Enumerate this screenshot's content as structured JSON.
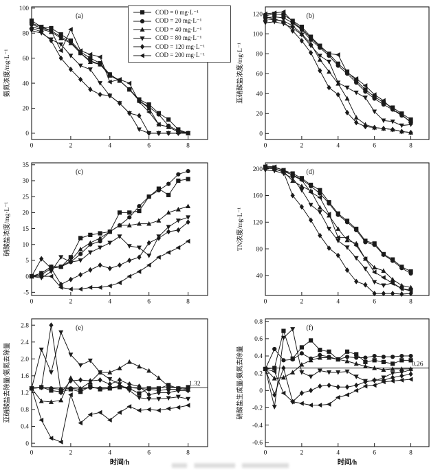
{
  "figure": {
    "background": "#ffffff",
    "line_color": "#1b1b1b",
    "x_axis_label": "时间/h",
    "x_tick_values": [
      0,
      2,
      4,
      6,
      8
    ],
    "x_ticks": [
      "0",
      "2",
      "4",
      "6",
      "8"
    ],
    "x_values": [
      0,
      0.5,
      1,
      1.5,
      2,
      2.5,
      3,
      3.5,
      4,
      4.5,
      5,
      5.5,
      6,
      6.5,
      7,
      7.5,
      8
    ]
  },
  "legend": {
    "entries": [
      {
        "label": "COD = 0 mg·L⁻¹",
        "marker": "square"
      },
      {
        "label": "COD = 20 mg·L⁻¹",
        "marker": "circle"
      },
      {
        "label": "COD = 40 mg·L⁻¹",
        "marker": "triangle-up"
      },
      {
        "label": "COD = 80 mg·L⁻¹",
        "marker": "triangle-down"
      },
      {
        "label": "COD = 120 mg·L⁻¹",
        "marker": "diamond"
      },
      {
        "label": "COD = 200 mg·L⁻¹",
        "marker": "triangle-left"
      }
    ]
  },
  "chart_data": [
    {
      "id": "a",
      "type": "line",
      "panel_label": "(a)",
      "ylabel": "氨氮浓度/mg·L⁻¹",
      "xlabel": "",
      "xlim": [
        0,
        9
      ],
      "ylim": [
        -5,
        101
      ],
      "ytick_values": [
        0,
        20,
        40,
        60,
        80,
        100
      ],
      "ytick_labels": [
        "0",
        "20",
        "40",
        "60",
        "80",
        "100"
      ],
      "series": [
        {
          "name": "COD = 0 mg·L⁻¹",
          "marker": "square",
          "values": [
            90,
            85,
            84,
            79,
            74,
            65,
            60,
            56,
            47,
            42,
            35,
            27,
            23,
            16,
            11,
            3,
            0
          ]
        },
        {
          "name": "COD = 20 mg·L⁻¹",
          "marker": "circle",
          "values": [
            87,
            84,
            82,
            77,
            73,
            64,
            58,
            55,
            47,
            42,
            35,
            26,
            21,
            15,
            6,
            2,
            0
          ]
        },
        {
          "name": "COD = 40 mg·L⁻¹",
          "marker": "triangle-up",
          "values": [
            85,
            83,
            81,
            76,
            72,
            64,
            57,
            55,
            46,
            42,
            35,
            26,
            20,
            7,
            5,
            1,
            0
          ]
        },
        {
          "name": "COD = 80 mg·L⁻¹",
          "marker": "triangle-down",
          "values": [
            82,
            80,
            75,
            71,
            62,
            54,
            51,
            40,
            30,
            24,
            16,
            3,
            0,
            0,
            0,
            0,
            0
          ]
        },
        {
          "name": "COD = 120 mg·L⁻¹",
          "marker": "diamond",
          "values": [
            84,
            81,
            74,
            60,
            51,
            43,
            35,
            31,
            30,
            24,
            16,
            14,
            0,
            0,
            0,
            0,
            0
          ]
        },
        {
          "name": "COD = 200 mg·L⁻¹",
          "marker": "triangle-left",
          "values": [
            88,
            85,
            82,
            66,
            83,
            66,
            63,
            61,
            41,
            43,
            40,
            25,
            17,
            7,
            5,
            1,
            0
          ]
        }
      ]
    },
    {
      "id": "b",
      "type": "line",
      "panel_label": "(b)",
      "ylabel": "亚硝酸盐浓度/mg·L⁻¹",
      "xlabel": "",
      "xlim": [
        0,
        9
      ],
      "ylim": [
        -6,
        127
      ],
      "ytick_values": [
        0,
        20,
        40,
        60,
        80,
        100,
        120
      ],
      "ytick_labels": [
        "0",
        "20",
        "40",
        "60",
        "80",
        "100",
        "120"
      ],
      "series": [
        {
          "name": "COD = 0 mg·L⁻¹",
          "marker": "square",
          "values": [
            118,
            120,
            119,
            113,
            107,
            97,
            88,
            80,
            70,
            62,
            53,
            44,
            37,
            31,
            26,
            20,
            14
          ]
        },
        {
          "name": "COD = 20 mg·L⁻¹",
          "marker": "circle",
          "values": [
            116,
            117,
            116,
            111,
            104,
            94,
            86,
            78,
            68,
            60,
            51,
            42,
            35,
            29,
            24,
            18,
            12
          ]
        },
        {
          "name": "COD = 40 mg·L⁻¹",
          "marker": "triangle-up",
          "values": [
            115,
            114,
            113,
            108,
            100,
            90,
            74,
            62,
            50,
            35,
            16,
            9,
            6,
            5,
            4,
            2,
            1
          ]
        },
        {
          "name": "COD = 80 mg·L⁻¹",
          "marker": "triangle-down",
          "values": [
            111,
            112,
            110,
            106,
            99,
            88,
            78,
            72,
            51,
            46,
            41,
            36,
            22,
            13,
            12,
            8,
            9
          ]
        },
        {
          "name": "COD = 120 mg·L⁻¹",
          "marker": "diamond",
          "values": [
            117,
            115,
            112,
            103,
            93,
            81,
            63,
            46,
            39,
            21,
            11,
            7,
            6,
            5,
            4,
            2,
            1
          ]
        },
        {
          "name": "COD = 200 mg·L⁻¹",
          "marker": "triangle-left",
          "values": [
            120,
            121,
            122,
            112,
            105,
            96,
            87,
            80,
            79,
            61,
            55,
            48,
            39,
            33,
            24,
            19,
            11
          ]
        }
      ]
    },
    {
      "id": "c",
      "type": "line",
      "panel_label": "(c)",
      "ylabel": "硝酸盐浓度/mg·L⁻¹",
      "xlabel": "",
      "xlim": [
        0,
        9
      ],
      "ylim": [
        -6,
        35.6
      ],
      "ytick_values": [
        -5,
        0,
        5,
        10,
        15,
        20,
        25,
        30,
        35
      ],
      "ytick_labels": [
        "-5",
        "0",
        "5",
        "10",
        "15",
        "20",
        "25",
        "30",
        "35"
      ],
      "series": [
        {
          "name": "COD = 0 mg·L⁻¹",
          "marker": "square",
          "values": [
            0,
            1,
            3,
            3,
            6,
            12,
            13,
            13.5,
            14,
            20,
            20,
            20.5,
            25,
            27.5,
            25.5,
            30,
            30.5
          ]
        },
        {
          "name": "COD = 20 mg·L⁻¹",
          "marker": "circle",
          "values": [
            0,
            0.5,
            2.5,
            3,
            4.5,
            7,
            10,
            11,
            14,
            16,
            18.5,
            22,
            25,
            27,
            29,
            32,
            33
          ]
        },
        {
          "name": "COD = 40 mg·L⁻¹",
          "marker": "triangle-up",
          "values": [
            0,
            1,
            3,
            3,
            5,
            8.5,
            10.5,
            12,
            14,
            16,
            16,
            16.5,
            16.5,
            17.5,
            20,
            21,
            22
          ]
        },
        {
          "name": "COD = 80 mg·L⁻¹",
          "marker": "triangle-down",
          "values": [
            0,
            -0.5,
            1.5,
            6,
            4.5,
            5,
            7.5,
            9,
            10.5,
            12.5,
            9.5,
            9,
            6.5,
            12.5,
            15.5,
            17.5,
            18.5
          ]
        },
        {
          "name": "COD = 120 mg·L⁻¹",
          "marker": "diamond",
          "values": [
            0,
            5.5,
            2.5,
            -2.5,
            -1,
            0.5,
            2,
            3.5,
            2.5,
            3.5,
            5,
            6,
            10.5,
            12,
            14,
            14.5,
            17
          ]
        },
        {
          "name": "COD = 200 mg·L⁻¹",
          "marker": "triangle-left",
          "values": [
            0,
            0,
            0,
            -3.5,
            -4,
            -4,
            -3.5,
            -3.5,
            -3,
            -2,
            0,
            1.5,
            3.5,
            6,
            7.5,
            9,
            11
          ]
        }
      ]
    },
    {
      "id": "d",
      "type": "line",
      "panel_label": "(d)",
      "ylabel": "TN浓度/mg·L⁻¹",
      "xlabel": "",
      "xlim": [
        0,
        9
      ],
      "ylim": [
        10,
        209
      ],
      "ytick_values": [
        40,
        80,
        120,
        160,
        200
      ],
      "ytick_labels": [
        "40",
        "80",
        "120",
        "160",
        "200"
      ],
      "series": [
        {
          "name": "COD = 0 mg·L⁻¹",
          "marker": "square",
          "values": [
            203,
            202,
            198,
            193,
            186,
            176,
            168,
            150,
            133,
            122,
            110,
            92,
            88,
            72,
            64,
            53,
            46
          ]
        },
        {
          "name": "COD = 20 mg·L⁻¹",
          "marker": "circle",
          "values": [
            201,
            200,
            196,
            191,
            184,
            174,
            163,
            148,
            131,
            120,
            108,
            90,
            86,
            71,
            62,
            51,
            43
          ]
        },
        {
          "name": "COD = 40 mg·L⁻¹",
          "marker": "triangle-up",
          "values": [
            202,
            200,
            196,
            182,
            174,
            167,
            142,
            130,
            110,
            93,
            88,
            65,
            52,
            47,
            34,
            25,
            22
          ]
        },
        {
          "name": "COD = 80 mg·L⁻¹",
          "marker": "triangle-down",
          "values": [
            198,
            197,
            193,
            186,
            168,
            146,
            135,
            110,
            92,
            82,
            66,
            50,
            30,
            25,
            29,
            20,
            18
          ]
        },
        {
          "name": "COD = 120 mg·L⁻¹",
          "marker": "diamond",
          "values": [
            202,
            200,
            195,
            160,
            143,
            123,
            100,
            81,
            70,
            48,
            31,
            26,
            13,
            13,
            13,
            12,
            13
          ]
        },
        {
          "name": "COD = 200 mg·L⁻¹",
          "marker": "triangle-left",
          "values": [
            204,
            203,
            198,
            190,
            183,
            165,
            157,
            132,
            97,
            97,
            85,
            65,
            45,
            37,
            28,
            20,
            17
          ]
        }
      ]
    },
    {
      "id": "e",
      "type": "line",
      "panel_label": "(e)",
      "ylabel": "亚硝酸盐去除量/氨氮去除量",
      "xlabel": "时间/h",
      "xlim": [
        0,
        9
      ],
      "ylim": [
        -0.08,
        2.95
      ],
      "ytick_values": [
        0,
        0.4,
        0.8,
        1.2,
        1.6,
        2.0,
        2.4,
        2.8
      ],
      "ytick_labels": [
        "0",
        "0.4",
        "0.8",
        "1.2",
        "1.6",
        "2.0",
        "2.4",
        "2.8"
      ],
      "ref_line": {
        "y": 1.32,
        "label": "1.32"
      },
      "series": [
        {
          "name": "COD = 0 mg·L⁻¹",
          "marker": "square",
          "values": [
            1.3,
            1.33,
            1.25,
            1.22,
            1.28,
            1.22,
            1.35,
            1.28,
            1.3,
            1.33,
            1.3,
            1.18,
            1.3,
            1.3,
            1.38,
            1.3,
            1.33
          ]
        },
        {
          "name": "COD = 20 mg·L⁻¹",
          "marker": "circle",
          "values": [
            1.3,
            1.32,
            1.3,
            1.28,
            1.3,
            1.28,
            1.32,
            1.3,
            1.32,
            1.35,
            1.32,
            1.3,
            1.28,
            1.25,
            1.28,
            1.28,
            1.3
          ]
        },
        {
          "name": "COD = 40 mg·L⁻¹",
          "marker": "triangle-up",
          "values": [
            1.3,
            1.0,
            0.98,
            1.02,
            1.55,
            1.3,
            1.45,
            1.68,
            1.68,
            1.78,
            1.93,
            1.82,
            1.72,
            1.55,
            1.35,
            1.3,
            1.27
          ]
        },
        {
          "name": "COD = 80 mg·L⁻¹",
          "marker": "triangle-down",
          "values": [
            1.3,
            2.22,
            1.68,
            2.63,
            2.1,
            1.85,
            1.96,
            1.68,
            1.52,
            1.4,
            1.25,
            1.08,
            1.05,
            1.05,
            1.07,
            1.1,
            1.05
          ]
        },
        {
          "name": "COD = 120 mg·L⁻¹",
          "marker": "diamond",
          "values": [
            1.3,
            1.32,
            2.8,
            1.2,
            1.48,
            1.5,
            1.48,
            1.5,
            1.4,
            1.5,
            1.4,
            1.35,
            1.15,
            1.2,
            1.2,
            1.25,
            1.25
          ]
        },
        {
          "name": "COD = 200 mg·L⁻¹",
          "marker": "triangle-left",
          "values": [
            1.3,
            0.55,
            0.12,
            0.03,
            1.15,
            0.48,
            0.68,
            0.73,
            0.55,
            0.73,
            0.87,
            0.78,
            0.8,
            0.78,
            0.82,
            0.85,
            0.9
          ]
        }
      ]
    },
    {
      "id": "f",
      "type": "line",
      "panel_label": "(f)",
      "ylabel": "硝酸盐生成量/氨氮去除量",
      "xlabel": "时间/h",
      "xlim": [
        0,
        9
      ],
      "ylim": [
        -0.65,
        0.83
      ],
      "ytick_values": [
        -0.6,
        -0.4,
        -0.2,
        0,
        0.2,
        0.4,
        0.6,
        0.8
      ],
      "ytick_labels": [
        "-0.6",
        "-0.4",
        "-0.2",
        "0",
        "0.2",
        "0.4",
        "0.6",
        "0.8"
      ],
      "ref_line": {
        "y": 0.26,
        "label": "0.26"
      },
      "series": [
        {
          "name": "COD = 0 mg·L⁻¹",
          "marker": "square",
          "values": [
            0.25,
            0.26,
            0.69,
            0.37,
            0.5,
            0.58,
            0.47,
            0.45,
            0.36,
            0.45,
            0.42,
            0.33,
            0.35,
            0.33,
            0.31,
            0.35,
            0.35
          ]
        },
        {
          "name": "COD = 20 mg·L⁻¹",
          "marker": "circle",
          "values": [
            0.25,
            0.48,
            0.35,
            0.36,
            0.43,
            0.37,
            0.41,
            0.39,
            0.36,
            0.39,
            0.38,
            0.38,
            0.4,
            0.39,
            0.39,
            0.4,
            0.4
          ]
        },
        {
          "name": "COD = 40 mg·L⁻¹",
          "marker": "triangle-up",
          "values": [
            0.25,
            0.14,
            0.15,
            0.21,
            0.3,
            0.35,
            0.38,
            0.38,
            0.36,
            0.34,
            0.31,
            0.28,
            0.26,
            0.24,
            0.25,
            0.25,
            0.25
          ]
        },
        {
          "name": "COD = 80 mg·L⁻¹",
          "marker": "triangle-down",
          "values": [
            0.25,
            -0.19,
            0.61,
            0.71,
            0.21,
            0.16,
            0.23,
            0.21,
            0.21,
            0.22,
            0.16,
            0.11,
            0.11,
            0.15,
            0.2,
            0.21,
            0.24
          ]
        },
        {
          "name": "COD = 120 mg·L⁻¹",
          "marker": "diamond",
          "values": [
            0.25,
            -0.05,
            0.26,
            -0.13,
            -0.03,
            0.0,
            0.05,
            0.06,
            0.04,
            0.04,
            0.06,
            0.1,
            0.12,
            0.12,
            0.15,
            0.17,
            0.19
          ]
        },
        {
          "name": "COD = 200 mg·L⁻¹",
          "marker": "triangle-left",
          "values": [
            0.25,
            0.22,
            -0.03,
            -0.13,
            -0.15,
            -0.17,
            -0.17,
            -0.16,
            -0.08,
            -0.05,
            0.0,
            0.05,
            0.06,
            0.1,
            0.11,
            0.12,
            0.13
          ]
        }
      ]
    }
  ]
}
